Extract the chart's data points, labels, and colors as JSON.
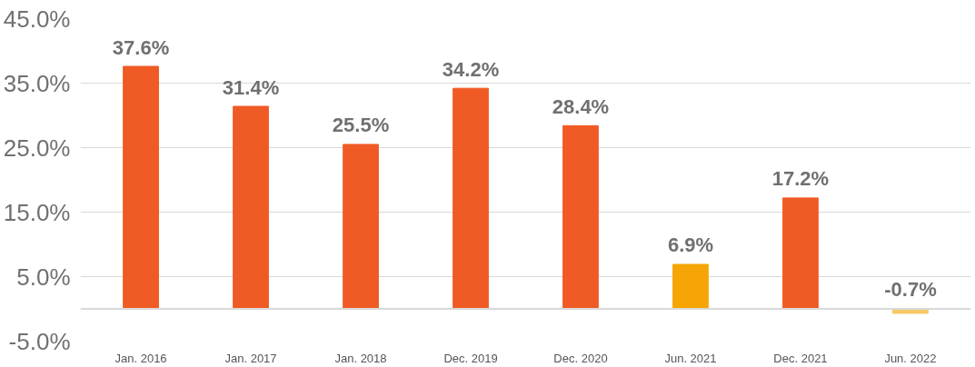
{
  "chart_data": {
    "type": "bar",
    "categories": [
      "Jan. 2016",
      "Jan. 2017",
      "Jan. 2018",
      "Dec. 2019",
      "Dec. 2020",
      "Jun. 2021",
      "Dec. 2021",
      "Jun. 2022"
    ],
    "values": [
      37.6,
      31.4,
      25.5,
      34.2,
      28.4,
      6.9,
      17.2,
      -0.7
    ],
    "colors": [
      "#f05a24",
      "#f05a24",
      "#f05a24",
      "#f05a24",
      "#f05a24",
      "#f5a504",
      "#f05a24",
      "#f8c866"
    ],
    "value_labels": [
      "37.6%",
      "31.4%",
      "25.5%",
      "34.2%",
      "28.4%",
      "6.9%",
      "17.2%",
      "-0.7%"
    ],
    "ylim": [
      -5,
      45
    ],
    "yticks": [
      {
        "value": -5,
        "label": "-5.0%"
      },
      {
        "value": 5,
        "label": "5.0%"
      },
      {
        "value": 15,
        "label": "15.0%"
      },
      {
        "value": 25,
        "label": "25.0%"
      },
      {
        "value": 35,
        "label": "35.0%"
      },
      {
        "value": 45,
        "label": "45.0%"
      }
    ],
    "grid": "y"
  }
}
